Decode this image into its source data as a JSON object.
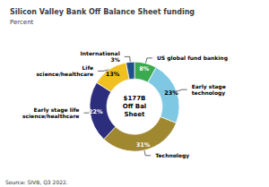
{
  "chart_data": {
    "type": "pie",
    "title": "Silicon Valley Bank Off Balance Sheet funding",
    "subtitle": "Percent",
    "annotations": [
      "$177B\nOff Bal\nSheet",
      "Source: SIVB, Q3 2022."
    ],
    "categories": [
      "US global fund banking",
      "Early stage\ntechnology",
      "Technology",
      "Early stage life\nscience/healthcare",
      "Life\nscience/healthcare",
      "International\n3%"
    ],
    "values": [
      8,
      23,
      31,
      22,
      13,
      3
    ],
    "value_labels": [
      "8%",
      "23%",
      "31%",
      "22%",
      "13%",
      null
    ],
    "data_labels": true,
    "colors": [
      "#3aaa50",
      "#7ec8e3",
      "#a08830",
      "#2c2d7c",
      "#f0c020",
      "#1f4e8a"
    ]
  }
}
